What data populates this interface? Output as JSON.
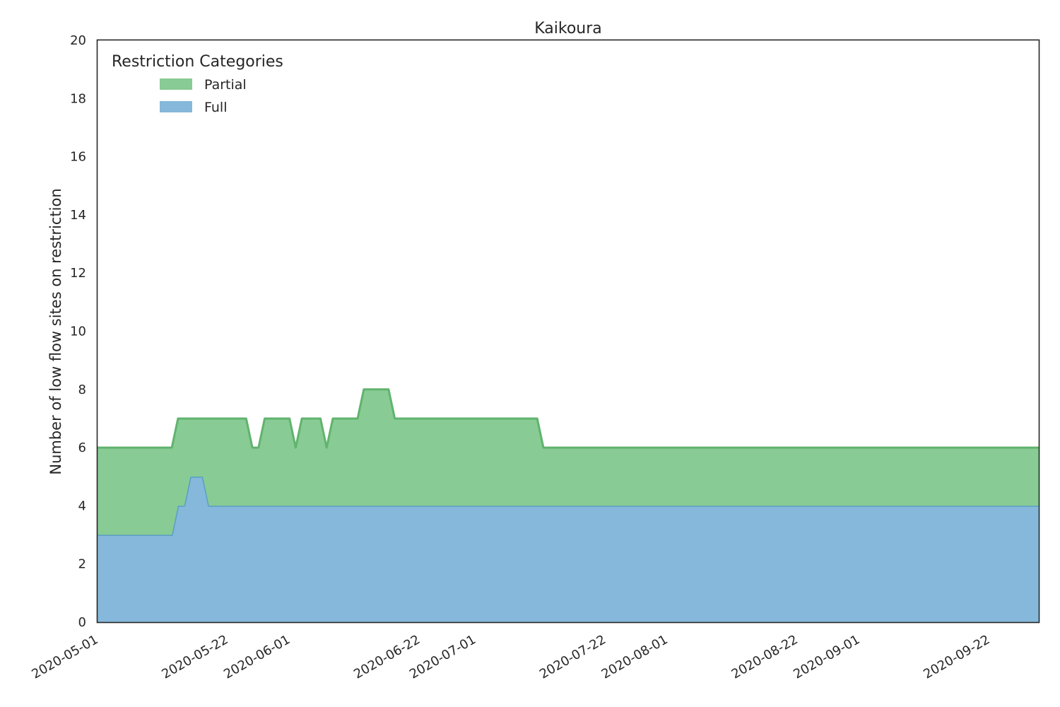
{
  "chart_data": {
    "type": "area",
    "title": "Kaikoura",
    "xlabel": "",
    "ylabel": "Number of low flow sites on restriction",
    "ylim": [
      0,
      20
    ],
    "xlim": [
      "2020-05-01",
      "2020-09-30"
    ],
    "yticks": [
      0,
      2,
      4,
      6,
      8,
      10,
      12,
      14,
      16,
      18,
      20
    ],
    "xticks": [
      "2020-05-01",
      "2020-05-22",
      "2020-06-01",
      "2020-06-22",
      "2020-07-01",
      "2020-07-22",
      "2020-08-01",
      "2020-08-22",
      "2020-09-01",
      "2020-09-22"
    ],
    "stacked": true,
    "grid": false,
    "legend": {
      "title": "Restriction Categories",
      "placement": "top-left"
    },
    "colors": {
      "Full": "#85b8da",
      "Partial": "#88cb94",
      "Full_line": "#5a9ec9",
      "Partial_line": "#61b36e",
      "axis": "#262626"
    },
    "x": [
      "2020-05-01",
      "2020-05-13",
      "2020-05-14",
      "2020-05-15",
      "2020-05-16",
      "2020-05-17",
      "2020-05-18",
      "2020-05-19",
      "2020-05-20",
      "2020-05-25",
      "2020-05-26",
      "2020-05-27",
      "2020-05-28",
      "2020-06-01",
      "2020-06-02",
      "2020-06-03",
      "2020-06-06",
      "2020-06-07",
      "2020-06-08",
      "2020-06-11",
      "2020-06-12",
      "2020-06-13",
      "2020-06-17",
      "2020-06-18",
      "2020-06-21",
      "2020-06-22",
      "2020-07-11",
      "2020-07-12",
      "2020-09-30"
    ],
    "series": [
      {
        "name": "Full",
        "values": [
          3,
          3,
          4,
          4,
          5,
          5,
          5,
          4,
          4,
          4,
          4,
          4,
          4,
          4,
          4,
          4,
          4,
          4,
          4,
          4,
          4,
          4,
          4,
          4,
          4,
          4,
          4,
          4,
          4
        ]
      },
      {
        "name": "Partial",
        "values": [
          3,
          3,
          3,
          3,
          2,
          2,
          2,
          3,
          3,
          3,
          2,
          2,
          3,
          3,
          2,
          3,
          3,
          2,
          3,
          3,
          3,
          4,
          4,
          3,
          3,
          3,
          3,
          2,
          2
        ]
      }
    ]
  }
}
